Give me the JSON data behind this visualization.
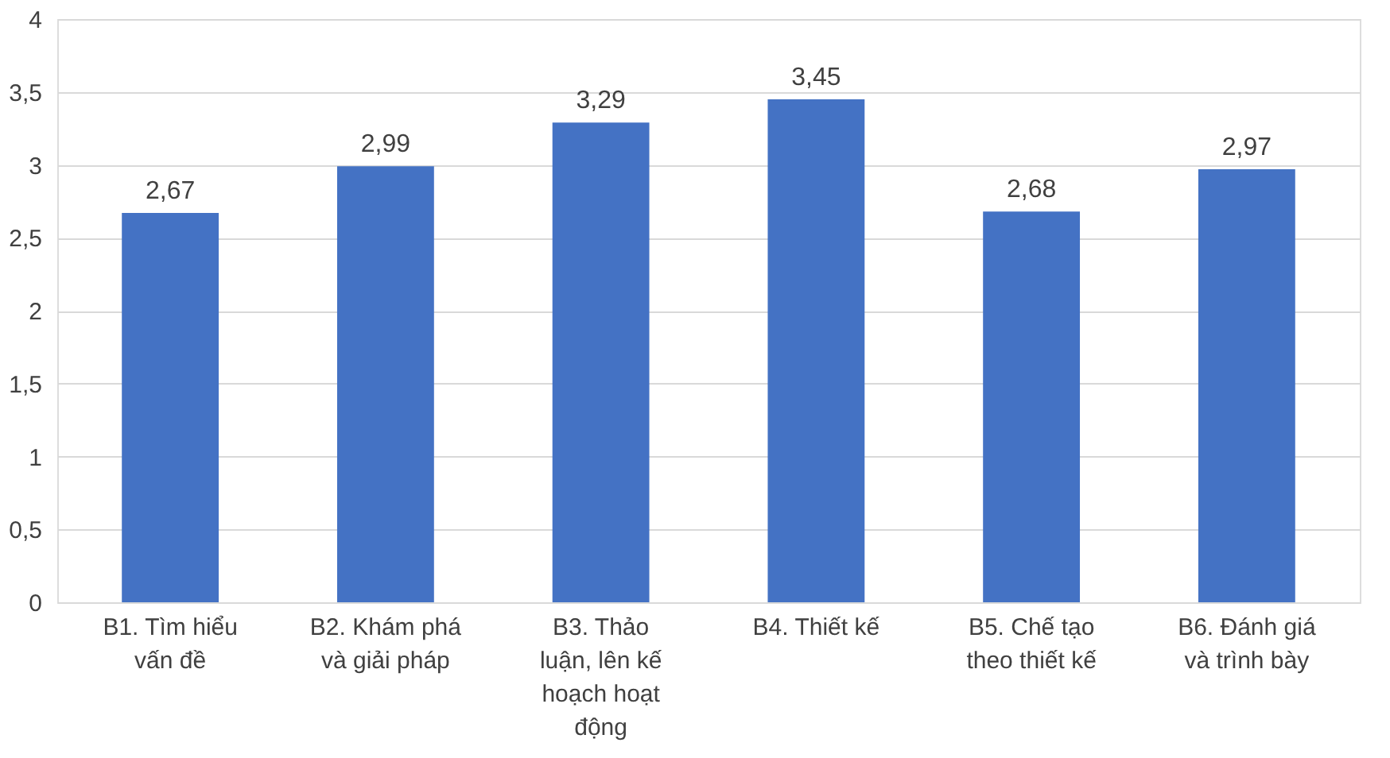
{
  "chart_data": {
    "type": "bar",
    "categories": [
      "B1. Tìm hiểu vấn đề",
      "B2. Khám phá và giải pháp",
      "B3. Thảo luận, lên kế hoạch hoạt động",
      "B4. Thiết kế",
      "B5. Chế tạo theo thiết kế",
      "B6. Đánh giá và trình bày"
    ],
    "values": [
      2.67,
      2.99,
      3.29,
      3.45,
      2.68,
      2.97
    ],
    "value_labels": [
      "2,67",
      "2,99",
      "3,29",
      "3,45",
      "2,68",
      "2,97"
    ],
    "color": "#4472c4",
    "ylim": [
      0,
      4
    ],
    "yticks": [
      0,
      {
        "value": 0.5,
        "label": "0,5"
      },
      1,
      {
        "value": 1.5,
        "label": "1,5"
      },
      2,
      {
        "value": 2.5,
        "label": "2,5"
      },
      3,
      {
        "value": 3.5,
        "label": "3,5"
      },
      4
    ],
    "grid": "y"
  }
}
